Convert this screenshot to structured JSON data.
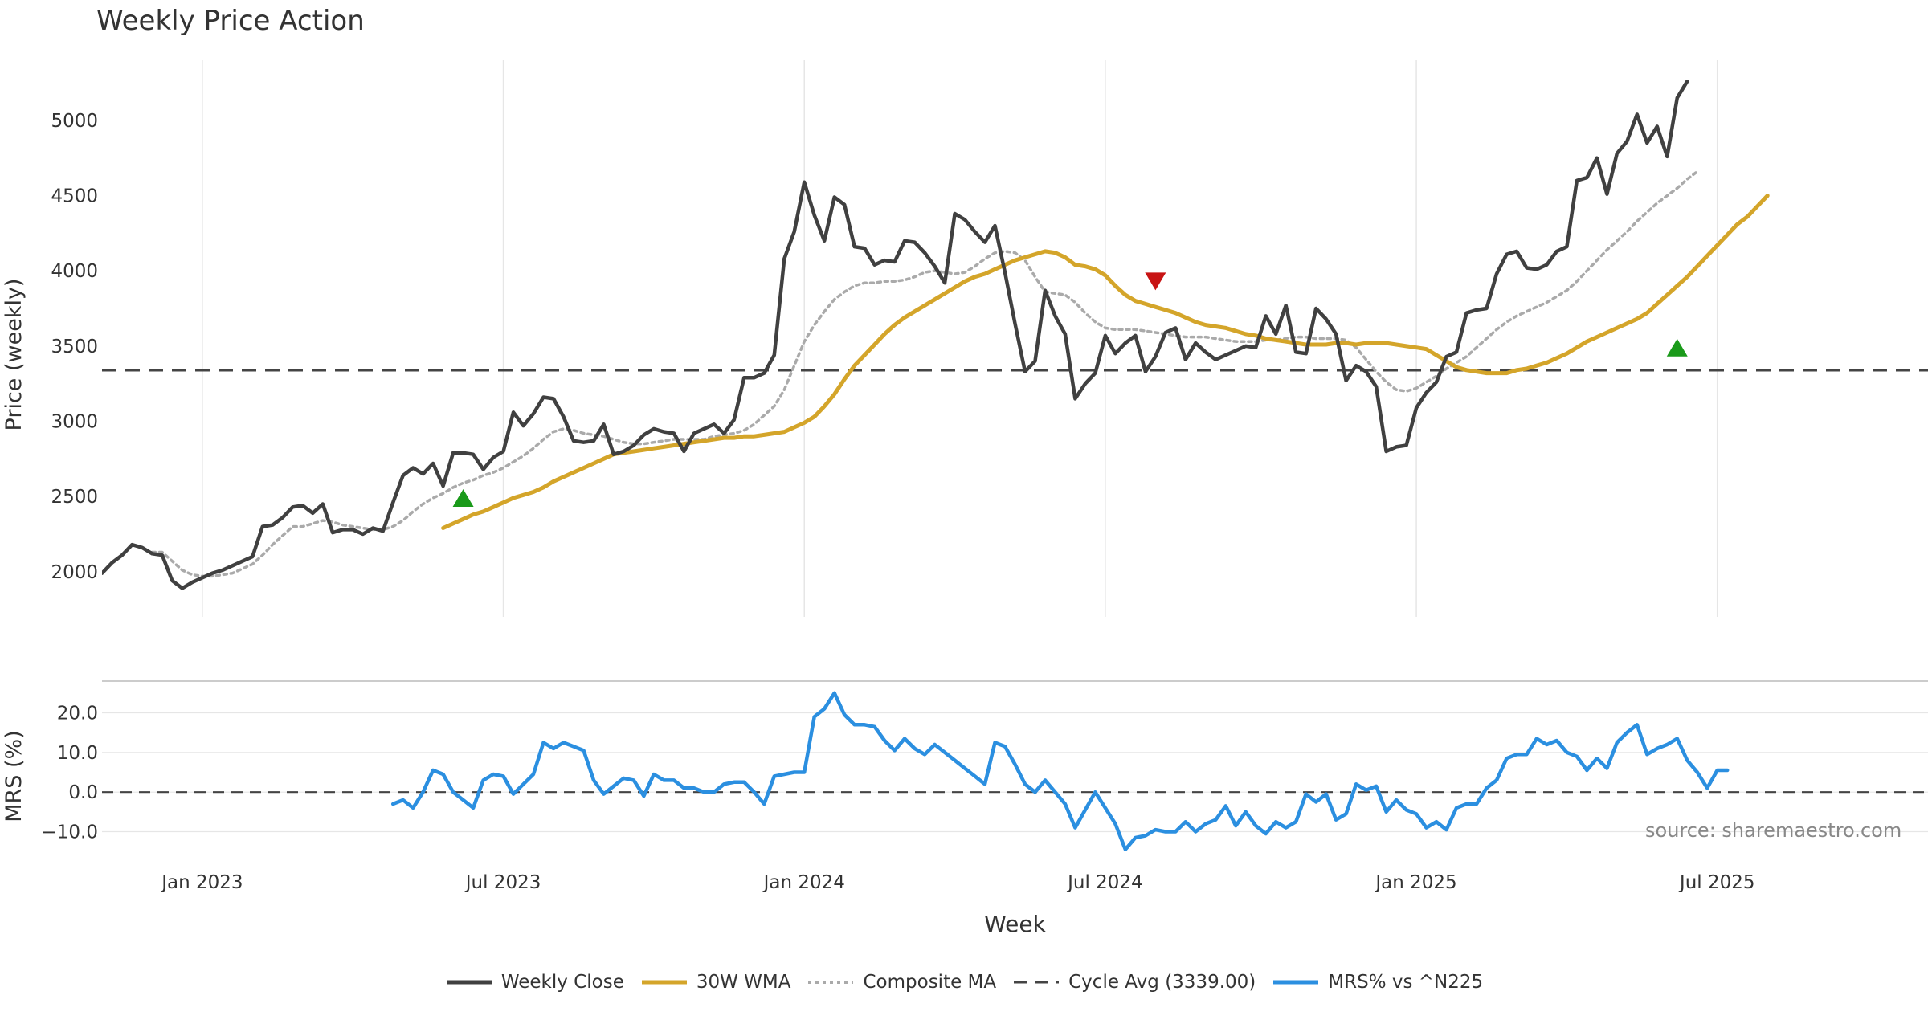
{
  "title": "Weekly Price Action",
  "source": "source: sharemaestro.com",
  "colors": {
    "close": "#404040",
    "wma": "#D4A52A",
    "composite": "#AAAAAA",
    "cycle": "#444444",
    "mrs": "#2B8FE0",
    "buy": "#1A9A1A",
    "sell": "#C81414",
    "grid": "#E6E6E6"
  },
  "legend": [
    {
      "label": "Weekly Close",
      "icon": "solid-line-icon",
      "color": "#404040"
    },
    {
      "label": "30W WMA",
      "icon": "solid-line-icon",
      "color": "#D4A52A"
    },
    {
      "label": "Composite MA",
      "icon": "dotted-line-icon",
      "color": "#AAAAAA"
    },
    {
      "label": "Cycle Avg (3339.00)",
      "icon": "dashed-line-icon",
      "color": "#444444"
    },
    {
      "label": "MRS% vs ^N225",
      "icon": "solid-line-icon",
      "color": "#2B8FE0"
    }
  ],
  "chart_data": [
    {
      "type": "line",
      "panel": "price",
      "ylabel": "Price (weekly)",
      "xlabel": "Week",
      "ylim": [
        1700,
        5400
      ],
      "xlim": [
        0,
        182
      ],
      "yticks": [
        2000,
        2500,
        3000,
        3500,
        4000,
        4500,
        5000
      ],
      "xticks": [
        {
          "label": "Jan 2023",
          "x": 10
        },
        {
          "label": "Jul 2023",
          "x": 40
        },
        {
          "label": "Jan 2024",
          "x": 70
        },
        {
          "label": "Jul 2024",
          "x": 100
        },
        {
          "label": "Jan 2025",
          "x": 131
        },
        {
          "label": "Jul 2025",
          "x": 161
        }
      ],
      "cycle_avg": 3339,
      "series": [
        {
          "name": "Weekly Close",
          "start": 0,
          "values": [
            1990,
            2060,
            2110,
            2180,
            2160,
            2120,
            2110,
            1940,
            1890,
            1930,
            1960,
            1990,
            2010,
            2040,
            2070,
            2100,
            2300,
            2310,
            2360,
            2430,
            2440,
            2390,
            2450,
            2260,
            2280,
            2280,
            2250,
            2290,
            2270,
            2460,
            2640,
            2690,
            2650,
            2720,
            2570,
            2790,
            2790,
            2780,
            2680,
            2760,
            2800,
            3060,
            2970,
            3050,
            3160,
            3150,
            3030,
            2870,
            2860,
            2870,
            2980,
            2780,
            2800,
            2840,
            2910,
            2950,
            2930,
            2920,
            2800,
            2920,
            2950,
            2980,
            2920,
            3010,
            3290,
            3290,
            3320,
            3440,
            4080,
            4260,
            4590,
            4370,
            4200,
            4490,
            4440,
            4160,
            4150,
            4040,
            4070,
            4060,
            4200,
            4190,
            4120,
            4030,
            3920,
            4380,
            4340,
            4260,
            4190,
            4300,
            3990,
            3650,
            3330,
            3400,
            3870,
            3700,
            3580,
            3150,
            3250,
            3320,
            3570,
            3450,
            3520,
            3570,
            3330,
            3430,
            3590,
            3620,
            3410,
            3520,
            3460,
            3410,
            3440,
            3470,
            3500,
            3490,
            3700,
            3580,
            3770,
            3460,
            3450,
            3750,
            3680,
            3580,
            3270,
            3370,
            3330,
            3230,
            2800,
            2830,
            2840,
            3090,
            3190,
            3260,
            3430,
            3460,
            3720,
            3740,
            3750,
            3980,
            4110,
            4130,
            4020,
            4010,
            4040,
            4130,
            4160,
            4600,
            4620,
            4750,
            4510,
            4780,
            4860,
            5040,
            4850,
            4960,
            4760,
            5150,
            5260
          ]
        },
        {
          "name": "30W WMA",
          "start": 34,
          "values": [
            2290,
            2320,
            2350,
            2380,
            2400,
            2430,
            2460,
            2490,
            2510,
            2530,
            2560,
            2600,
            2630,
            2660,
            2690,
            2720,
            2750,
            2780,
            2790,
            2800,
            2810,
            2820,
            2830,
            2840,
            2850,
            2860,
            2870,
            2880,
            2890,
            2890,
            2900,
            2900,
            2910,
            2920,
            2930,
            2960,
            2990,
            3030,
            3100,
            3180,
            3280,
            3370,
            3440,
            3510,
            3580,
            3640,
            3690,
            3730,
            3770,
            3810,
            3850,
            3890,
            3930,
            3960,
            3980,
            4010,
            4040,
            4070,
            4090,
            4110,
            4130,
            4120,
            4090,
            4040,
            4030,
            4010,
            3970,
            3900,
            3840,
            3800,
            3780,
            3760,
            3740,
            3720,
            3690,
            3660,
            3640,
            3630,
            3620,
            3600,
            3580,
            3570,
            3550,
            3540,
            3530,
            3520,
            3510,
            3510,
            3510,
            3520,
            3520,
            3510,
            3520,
            3520,
            3520,
            3510,
            3500,
            3490,
            3480,
            3440,
            3400,
            3360,
            3340,
            3330,
            3320,
            3320,
            3320,
            3340,
            3350,
            3370,
            3390,
            3420,
            3450,
            3490,
            3530,
            3560,
            3590,
            3620,
            3650,
            3680,
            3720,
            3780,
            3840,
            3900,
            3960,
            4030,
            4100,
            4170,
            4240,
            4310,
            4360,
            4430,
            4500
          ]
        },
        {
          "name": "Composite MA",
          "start": 5,
          "values": [
            2130,
            2130,
            2070,
            2010,
            1980,
            1970,
            1970,
            1980,
            1990,
            2020,
            2050,
            2110,
            2180,
            2240,
            2300,
            2300,
            2320,
            2340,
            2330,
            2310,
            2300,
            2290,
            2280,
            2280,
            2300,
            2340,
            2400,
            2450,
            2490,
            2520,
            2560,
            2590,
            2610,
            2640,
            2660,
            2690,
            2730,
            2770,
            2820,
            2880,
            2930,
            2950,
            2940,
            2920,
            2910,
            2900,
            2880,
            2860,
            2850,
            2850,
            2860,
            2870,
            2880,
            2880,
            2880,
            2880,
            2900,
            2910,
            2920,
            2940,
            2980,
            3040,
            3100,
            3210,
            3370,
            3530,
            3640,
            3730,
            3810,
            3860,
            3900,
            3920,
            3920,
            3930,
            3930,
            3940,
            3960,
            3990,
            4000,
            3990,
            3980,
            3990,
            4030,
            4080,
            4120,
            4130,
            4120,
            4070,
            3960,
            3860,
            3850,
            3840,
            3790,
            3720,
            3660,
            3620,
            3610,
            3610,
            3610,
            3600,
            3590,
            3580,
            3570,
            3560,
            3560,
            3560,
            3550,
            3540,
            3530,
            3530,
            3530,
            3540,
            3540,
            3550,
            3560,
            3560,
            3550,
            3550,
            3550,
            3540,
            3490,
            3410,
            3330,
            3260,
            3210,
            3200,
            3220,
            3260,
            3300,
            3350,
            3390,
            3430,
            3490,
            3550,
            3610,
            3660,
            3700,
            3730,
            3760,
            3790,
            3830,
            3870,
            3930,
            4000,
            4070,
            4140,
            4200,
            4260,
            4330,
            4390,
            4450,
            4500,
            4550,
            4610,
            4660
          ]
        }
      ],
      "signals": [
        {
          "type": "buy",
          "x": 36,
          "y": 2490
        },
        {
          "type": "sell",
          "x": 105,
          "y": 3930
        },
        {
          "type": "buy",
          "x": 157,
          "y": 3490
        }
      ]
    },
    {
      "type": "line",
      "panel": "mrs",
      "ylabel": "MRS (%)",
      "ylim": [
        -18,
        28
      ],
      "yticks": [
        -10,
        0,
        10,
        20
      ],
      "yticklabels": [
        "−10.0",
        "0.0",
        "10.0",
        "20.0"
      ],
      "series": [
        {
          "name": "MRS% vs ^N225",
          "start": 29,
          "values": [
            -3,
            -2,
            -4,
            0,
            5.5,
            4.5,
            0,
            -2,
            -4,
            3,
            4.5,
            4,
            -0.5,
            2,
            4.5,
            12.5,
            11,
            12.5,
            11.5,
            10.5,
            3,
            -0.5,
            1.5,
            3.5,
            3,
            -1,
            4.5,
            3,
            3,
            1,
            1,
            0,
            0,
            2,
            2.5,
            2.5,
            0,
            -3,
            4,
            4.5,
            5,
            5,
            19,
            21,
            25,
            19.5,
            17,
            17,
            16.5,
            13,
            10.5,
            13.5,
            11,
            9.5,
            12,
            10,
            8,
            6,
            4,
            2,
            12.5,
            11.5,
            7,
            2,
            0,
            3,
            0,
            -3,
            -9,
            -4.5,
            0,
            -4,
            -8,
            -14.5,
            -11.5,
            -11,
            -9.5,
            -10,
            -10,
            -7.5,
            -10,
            -8,
            -7,
            -3.5,
            -8.5,
            -5,
            -8.5,
            -10.5,
            -7.5,
            -9,
            -7.5,
            -0.5,
            -2.5,
            -0.5,
            -7,
            -5.5,
            2,
            0.5,
            1.5,
            -5,
            -2,
            -4.5,
            -5.5,
            -9,
            -7.5,
            -9.5,
            -4,
            -3,
            -3,
            1,
            3,
            8.5,
            9.5,
            9.5,
            13.5,
            12,
            13,
            10,
            9,
            5.5,
            8.5,
            6,
            12.5,
            15,
            17,
            9.5,
            11,
            12,
            13.5,
            8,
            5,
            1,
            5.5,
            5.5
          ]
        }
      ]
    }
  ]
}
